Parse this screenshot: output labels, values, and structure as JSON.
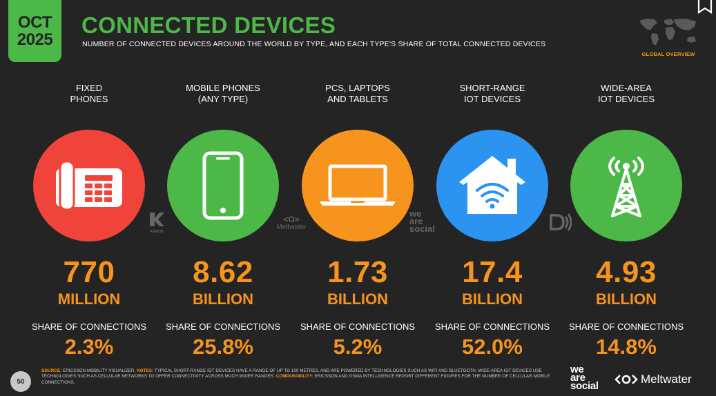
{
  "badge": {
    "month": "OCT",
    "year": "2025"
  },
  "header": {
    "title": "CONNECTED DEVICES",
    "subtitle": "NUMBER OF CONNECTED DEVICES AROUND THE WORLD BY TYPE, AND EACH TYPE'S SHARE OF TOTAL CONNECTED DEVICES",
    "section": "GLOBAL OVERVIEW"
  },
  "columns": [
    {
      "label_1": "FIXED",
      "label_2": "PHONES",
      "value": "770",
      "unit": "MILLION",
      "share_label": "SHARE OF CONNECTIONS",
      "share": "2.3%",
      "color": "#f0443a",
      "icon": "fixed-phone-icon"
    },
    {
      "label_1": "MOBILE PHONES",
      "label_2": "(ANY TYPE)",
      "value": "8.62",
      "unit": "BILLION",
      "share_label": "SHARE OF CONNECTIONS",
      "share": "25.8%",
      "color": "#4cb848",
      "icon": "mobile-phone-icon"
    },
    {
      "label_1": "PCS, LAPTOPS",
      "label_2": "AND TABLETS",
      "value": "1.73",
      "unit": "BILLION",
      "share_label": "SHARE OF CONNECTIONS",
      "share": "5.2%",
      "color": "#f7941d",
      "icon": "laptop-icon"
    },
    {
      "label_1": "SHORT-RANGE",
      "label_2": "IOT DEVICES",
      "value": "17.4",
      "unit": "BILLION",
      "share_label": "SHARE OF CONNECTIONS",
      "share": "52.0%",
      "color": "#2d93f0",
      "icon": "smart-home-icon"
    },
    {
      "label_1": "WIDE-AREA",
      "label_2": "IOT DEVICES",
      "value": "4.93",
      "unit": "BILLION",
      "share_label": "SHARE OF CONNECTIONS",
      "share": "14.8%",
      "color": "#4cb848",
      "icon": "antenna-tower-icon"
    }
  ],
  "watermarks": {
    "kepios": "KEPIOS",
    "meltwater": "Meltwater",
    "we_are_social_1": "we",
    "we_are_social_2": "are",
    "we_are_social_3": "social"
  },
  "footer": {
    "page_number": "50",
    "source_key": "SOURCE:",
    "source_text": " ERICSSON MOBILITY VISUALIZER. ",
    "notes_key": "NOTES:",
    "notes_text": " TYPICAL SHORT-RANGE IOT DEVICES HAVE A RANGE OF UP TO 100 METRES, AND ARE POWERED BY TECHNOLOGIES SUCH AS WIFI AND BLUETOOTH. WIDE-AREA IOT DEVICES USE TECHNOLOGIES SUCH AS CELLULAR NETWORKS TO OFFER CONNECTIVITY ACROSS MUCH WIDER RANGES. ",
    "comparability_key": "COMPARABILITY:",
    "comparability_text": " ERICSSON AND GSMA INTELLIGENCE REPORT DIFFERENT FIGURES FOR THE NUMBER OF CELLULAR MOBILE CONNECTIONS.",
    "brand_1": "we",
    "brand_2": "are",
    "brand_3": "social",
    "brand_meltwater": "Meltwater"
  }
}
